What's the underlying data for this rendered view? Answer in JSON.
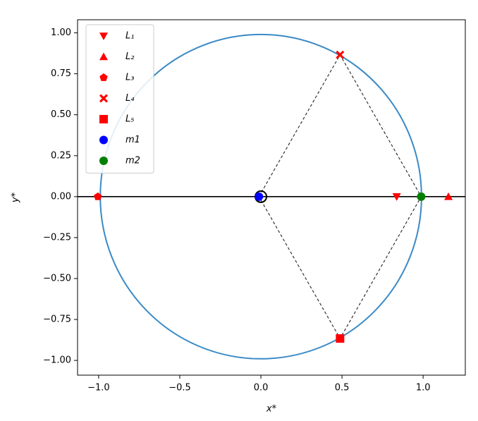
{
  "chart_data": {
    "type": "scatter",
    "x_label": "x*",
    "y_label": "y*",
    "xlim": [
      -1.13,
      1.26
    ],
    "ylim": [
      -1.09,
      1.08
    ],
    "xticks": [
      {
        "value": -1,
        "label": "−1.0"
      },
      {
        "value": -0.5,
        "label": "−0.5"
      },
      {
        "value": 0,
        "label": "0.0"
      },
      {
        "value": 0.5,
        "label": "0.5"
      },
      {
        "value": 1,
        "label": "1.0"
      }
    ],
    "yticks": [
      {
        "value": -1,
        "label": "−1.00"
      },
      {
        "value": -0.75,
        "label": "−0.75"
      },
      {
        "value": -0.5,
        "label": "−0.50"
      },
      {
        "value": -0.25,
        "label": "−0.25"
      },
      {
        "value": 0,
        "label": "0.00"
      },
      {
        "value": 0.25,
        "label": "0.25"
      },
      {
        "value": 0.5,
        "label": "0.50"
      },
      {
        "value": 0.75,
        "label": "0.75"
      },
      {
        "value": 1,
        "label": "1.00"
      }
    ],
    "grid": false,
    "legend": "upper left",
    "circle": {
      "x": 0,
      "y": 0,
      "radius": 0.99,
      "color": "#3a8ac6"
    },
    "hline": 0,
    "barycenter": {
      "x": 0,
      "y": 0
    },
    "series": [
      {
        "name": "L₁",
        "color": "#ff0000",
        "marker": "triangle-down",
        "x": [
          0.837
        ],
        "y": [
          0
        ]
      },
      {
        "name": "L₂",
        "color": "#ff0000",
        "marker": "triangle-up",
        "x": [
          1.156
        ],
        "y": [
          0
        ]
      },
      {
        "name": "L₃",
        "color": "#ff0000",
        "marker": "pentagon",
        "x": [
          -1.005
        ],
        "y": [
          0
        ]
      },
      {
        "name": "L₄",
        "color": "#ff0000",
        "marker": "x",
        "x": [
          0.488
        ],
        "y": [
          0.866
        ]
      },
      {
        "name": "L₅",
        "color": "#ff0000",
        "marker": "square",
        "x": [
          0.488
        ],
        "y": [
          -0.866
        ]
      },
      {
        "name": "m1",
        "color": "#0000ff",
        "marker": "circle",
        "x": [
          -0.012
        ],
        "y": [
          0
        ]
      },
      {
        "name": "m2",
        "color": "#008000",
        "marker": "circle",
        "x": [
          0.988
        ],
        "y": [
          0
        ]
      }
    ]
  }
}
